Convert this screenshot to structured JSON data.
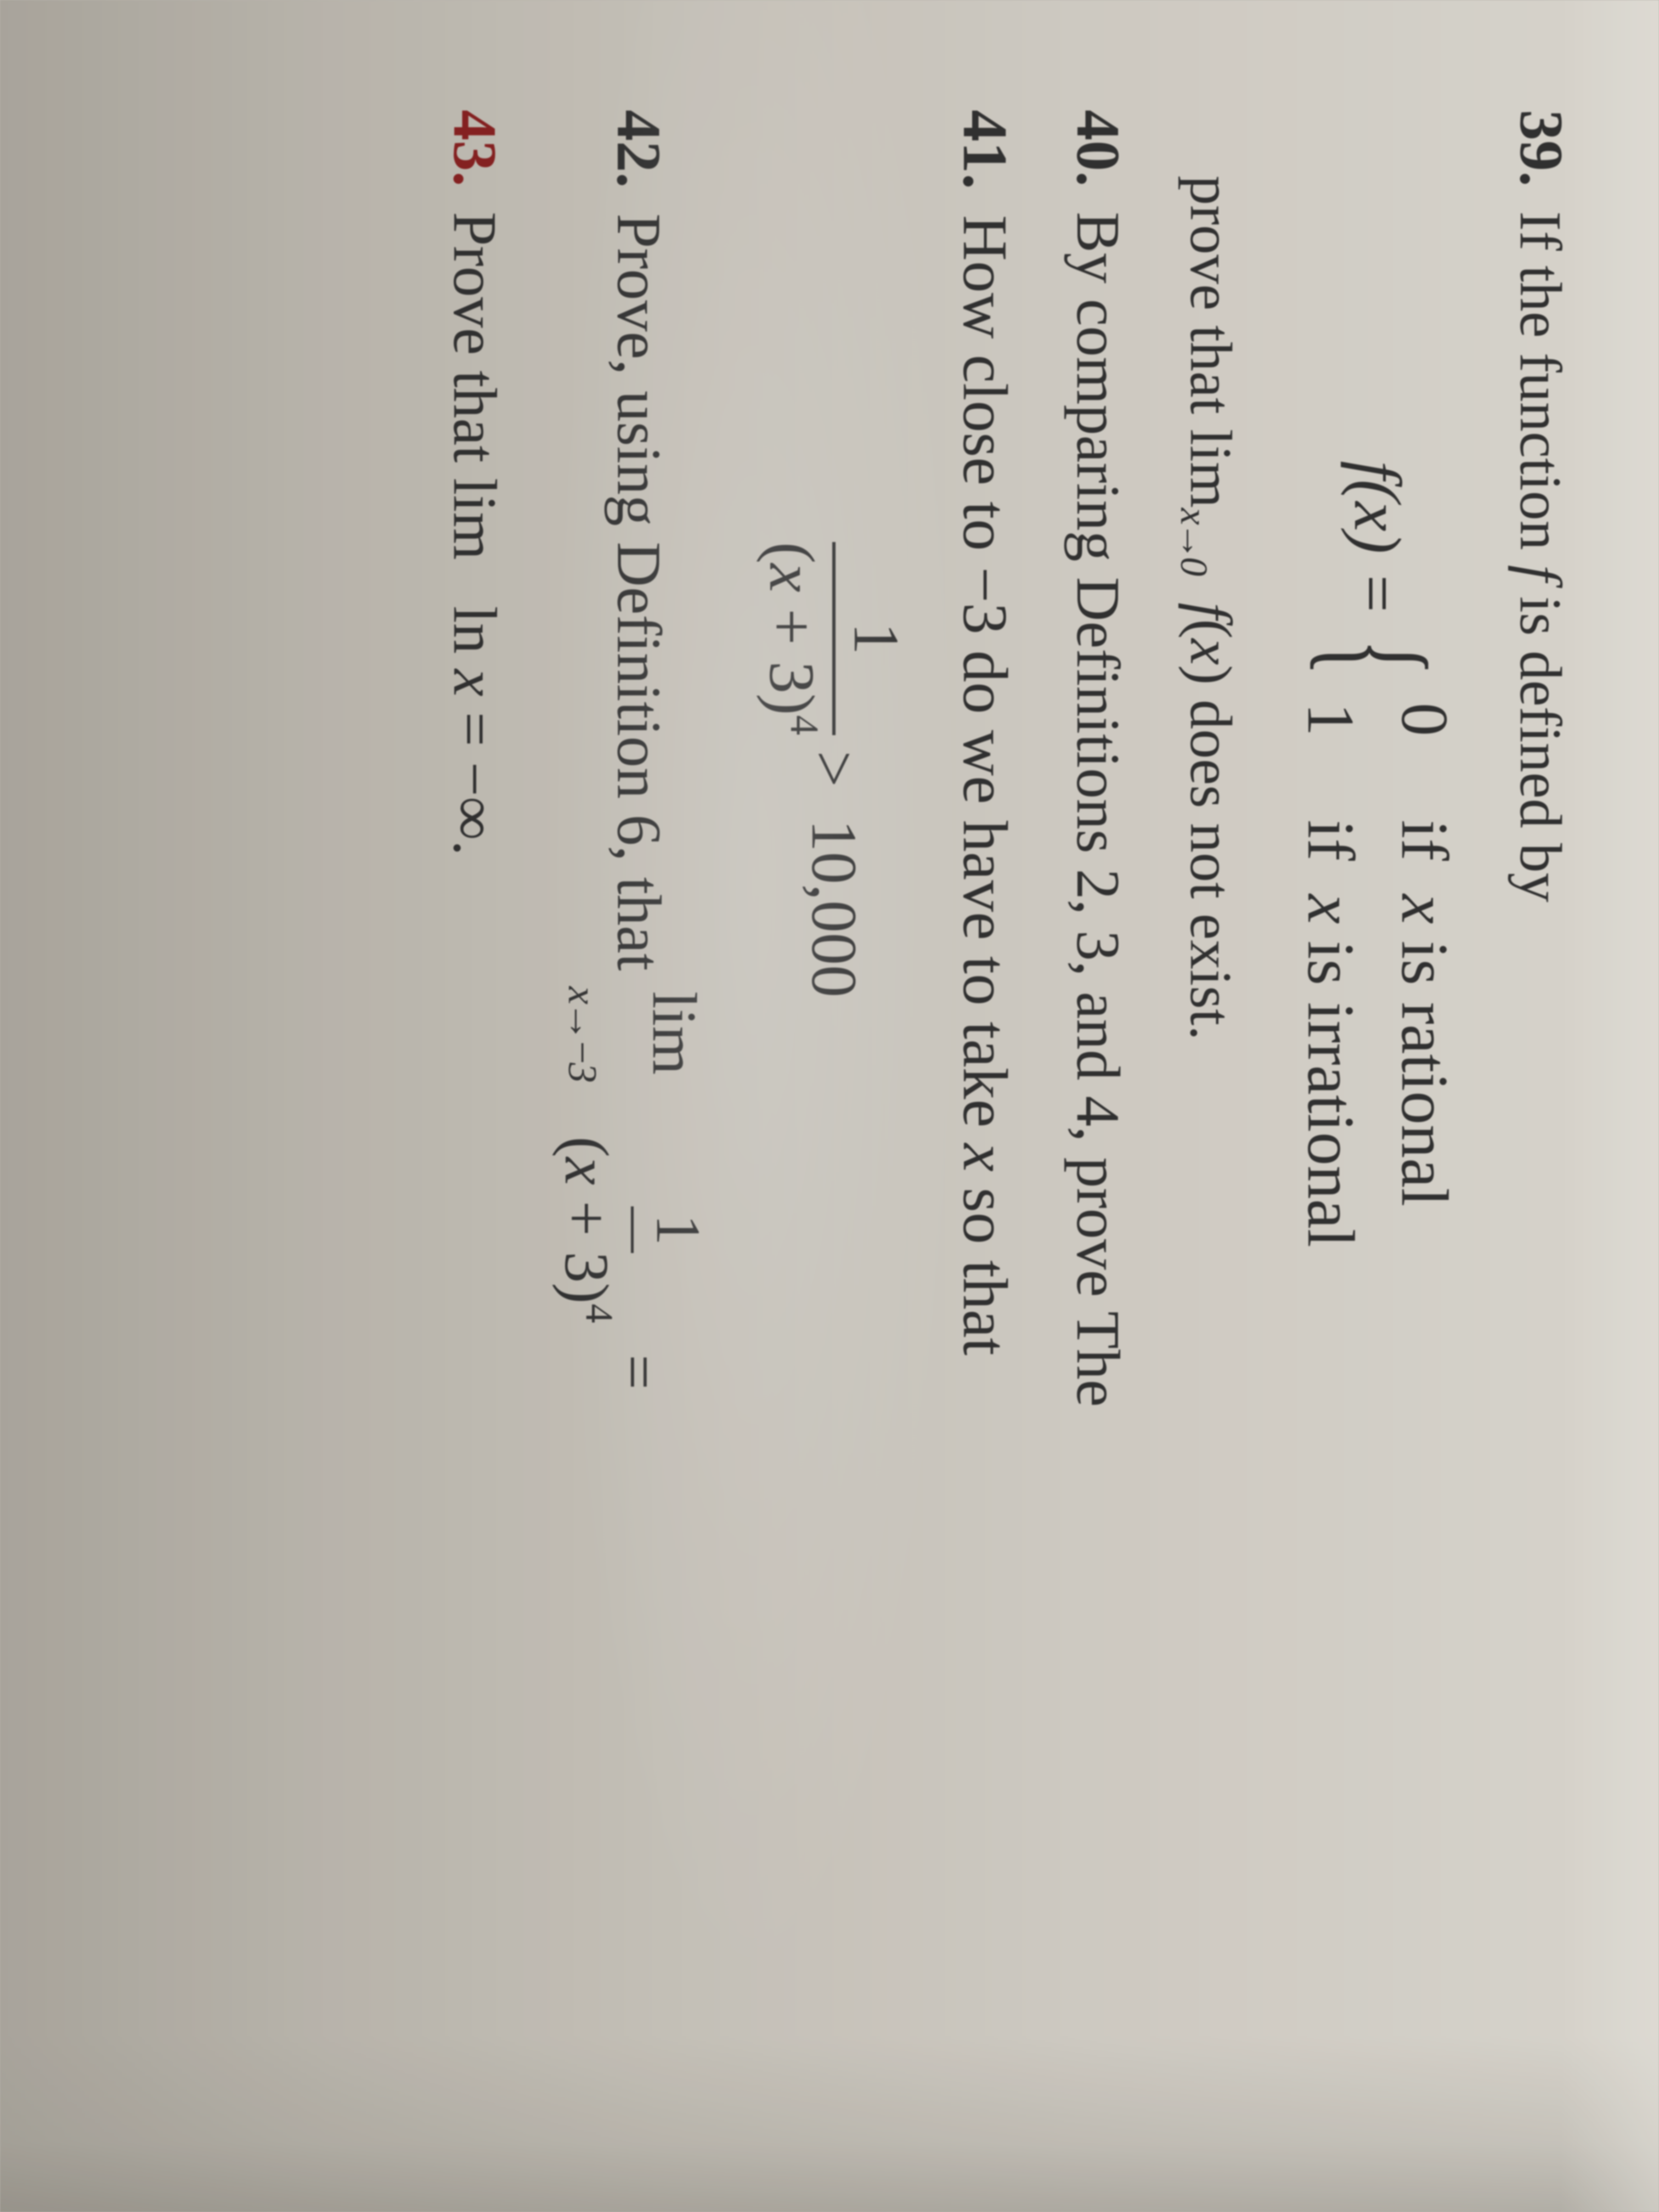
{
  "q39": {
    "num": "39.",
    "text_a": "If the function ",
    "text_b": " is defined by",
    "fx": "f(x) = ",
    "case1_v": "0",
    "case1_t": "if  x is rational",
    "case2_v": "1",
    "case2_t": "if  x is irrational",
    "prove_a": "prove that lim",
    "prove_sub": "x→0",
    "prove_b": " f(x) does not exist."
  },
  "q40": {
    "num": "40.",
    "text": "By comparing Definitions 2, 3, and 4, prove The"
  },
  "q41": {
    "num": "41.",
    "text": "How close to −3 do we have to take x so that",
    "frac_top": "1",
    "frac_bot_a": "(x + 3)",
    "frac_bot_sup": "4",
    "gt": ">",
    "rhs": "10,000"
  },
  "q42": {
    "num": "42.",
    "text_a": "Prove, using Definition 6, that  ",
    "lim": "lim",
    "sub": "x→−3",
    "frac_top": "1",
    "frac_bot_a": "(x + 3)",
    "frac_bot_sup": "4",
    "eq": "="
  },
  "q43": {
    "num": "43.",
    "text_a": "Prove that  ",
    "lim": "lim",
    "text_b": "  ln x = −∞."
  }
}
